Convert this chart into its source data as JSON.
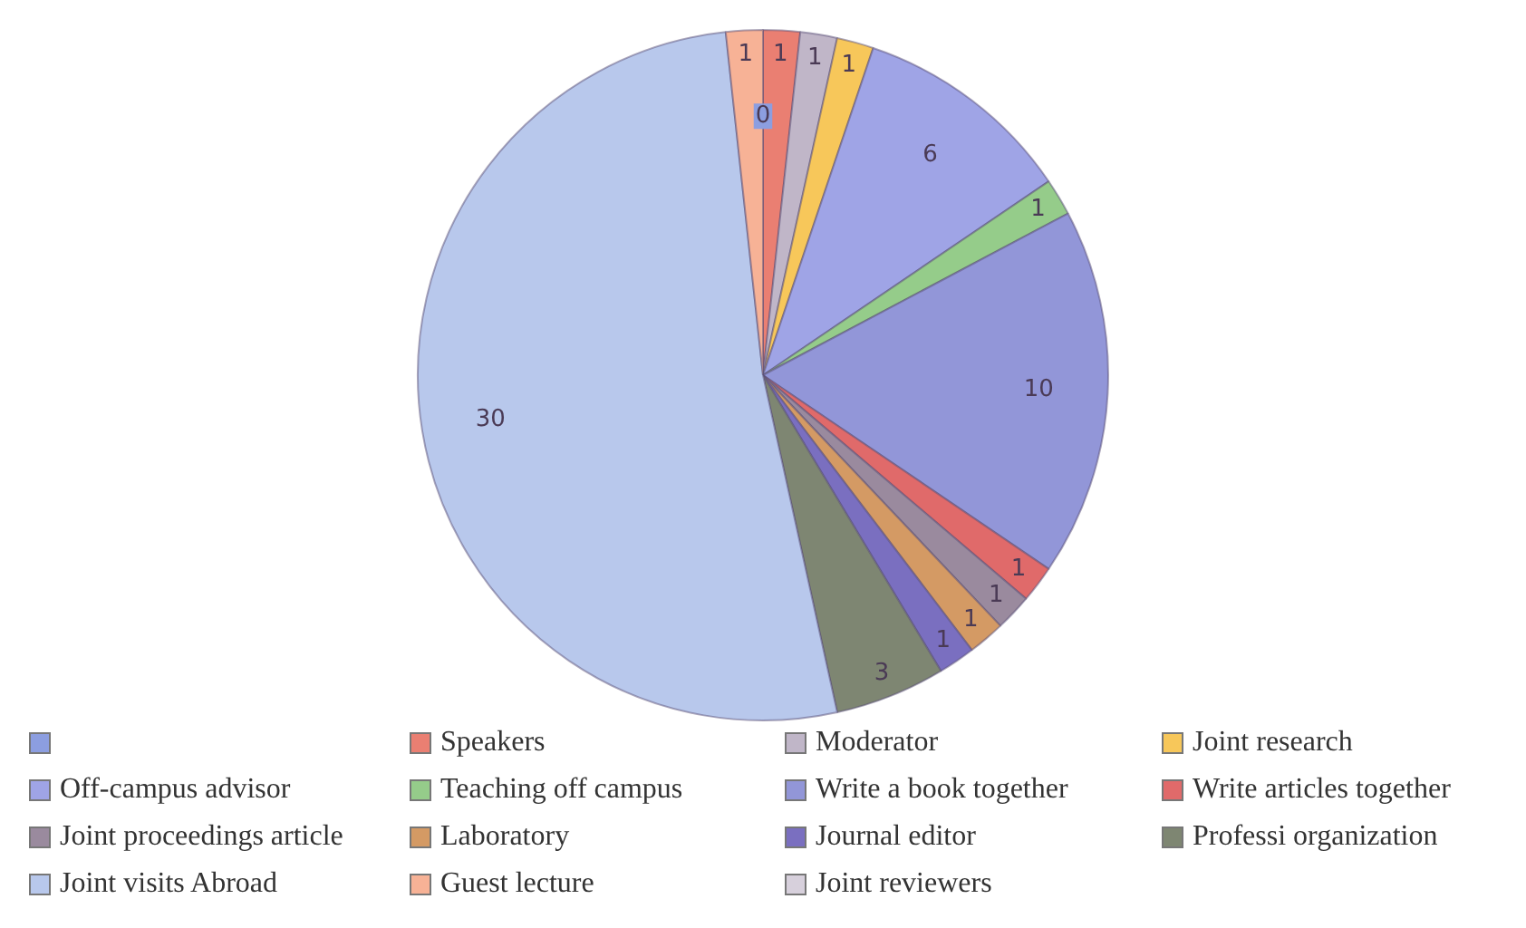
{
  "chart_data": {
    "type": "pie",
    "categories": [
      null,
      "Speakers",
      "Moderator",
      "Joint research",
      "Off-campus advisor",
      "Teaching off campus",
      "Write a book together",
      "Write articles together",
      "Joint proceedings article",
      "Laboratory",
      "Journal editor",
      "Professi organization",
      "Joint visits Abroad",
      "Guest lecture",
      "Joint reviewers"
    ],
    "values": [
      0,
      1,
      1,
      1,
      6,
      1,
      10,
      1,
      1,
      1,
      1,
      3,
      30,
      1,
      null
    ],
    "colors": [
      "#8c9ee0",
      "#ea7f72",
      "#c0b6c8",
      "#f7c75a",
      "#9fa4e6",
      "#95cc8a",
      "#9296d8",
      "#e06a6a",
      "#9a8a9e",
      "#d49a64",
      "#7a6fc0",
      "#7e8672",
      "#b8c8ec",
      "#f7b296",
      "#d7d0dc"
    ],
    "value_labels": [
      "0",
      "1",
      "1",
      "1",
      "6",
      "1",
      "10",
      "1",
      "1",
      "1",
      "1",
      "3",
      "30",
      "1",
      null
    ],
    "legend": "bottom"
  }
}
